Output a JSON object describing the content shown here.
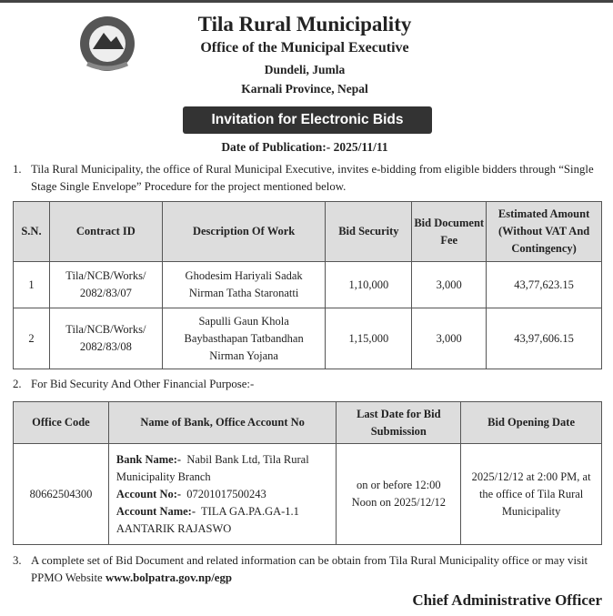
{
  "header": {
    "title": "Tila Rural Municipality",
    "office": "Office of the Municipal Executive",
    "address1": "Dundeli, Jumla",
    "address2": "Karnali Province, Nepal",
    "banner": "Invitation for Electronic Bids",
    "publication_date": "Date of Publication:- 2025/11/11"
  },
  "para1": {
    "num": "1.",
    "text": "Tila Rural Municipality, the office of Rural Municipal Executive, invites e-bidding from eligible bidders through “Single Stage Single Envelope” Procedure for the project mentioned below."
  },
  "table1": {
    "headers": [
      "S.N.",
      "Contract ID",
      "Description Of Work",
      "Bid Security",
      "Bid Document Fee",
      "Estimated Amount (Without VAT And Contingency)"
    ],
    "rows": [
      [
        "1",
        "Tila/NCB/Works/ 2082/83/07",
        "Ghodesim Hariyali Sadak Nirman Tatha Staronatti",
        "1,10,000",
        "3,000",
        "43,77,623.15"
      ],
      [
        "2",
        "Tila/NCB/Works/ 2082/83/08",
        "Sapulli Gaun Khola Baybasthapan Tatbandhan Nirman Yojana",
        "1,15,000",
        "3,000",
        "43,97,606.15"
      ]
    ]
  },
  "para2": {
    "num": "2.",
    "text": "For Bid Security And Other Financial Purpose:-"
  },
  "table2": {
    "headers": [
      "Office Code",
      "Name of Bank, Office Account No",
      "Last Date for Bid Submission",
      "Bid Opening Date"
    ],
    "office_code": "80662504300",
    "bank_label": "Bank Name:-",
    "bank_value": "Nabil Bank Ltd, Tila Rural Municipality Branch",
    "acno_label": "Account  No:-",
    "acno_value": "07201017500243",
    "acname_label": "Account Name:-",
    "acname_value": "TILA GA.PA.GA-1.1 AANTARIK RAJASWO",
    "last_date": "on or before 12:00 Noon on 2025/12/12",
    "opening": "2025/12/12 at 2:00 PM, at the office of Tila Rural Municipality"
  },
  "para3": {
    "num": "3.",
    "text": "A complete set of Bid Document and related information can be obtain from Tila Rural Municipality office or may visit PPMO Website ",
    "link": "www.bolpatra.gov.np/egp"
  },
  "signature": "Chief Administrative Officer"
}
